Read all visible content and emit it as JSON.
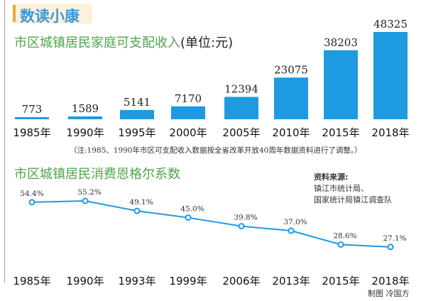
{
  "header": {
    "badge": "数读小康"
  },
  "chart_data": [
    {
      "type": "bar",
      "title": "市区城镇居民家庭可支配收入",
      "unit": "(单位:元)",
      "categories": [
        "1985年",
        "1990年",
        "1995年",
        "2000年",
        "2005年",
        "2010年",
        "2015年",
        "2018年"
      ],
      "values": [
        773,
        1589,
        5141,
        7170,
        12394,
        23075,
        38203,
        48325
      ],
      "note": "（注:1985、1990年市区可支配收入数据按全省改革开放40周年数据资料进行了调整。）",
      "color": "#1e9be0"
    },
    {
      "type": "line",
      "title": "市区城镇居民消费恩格尔系数",
      "categories": [
        "1985年",
        "1990年",
        "1993年",
        "1999年",
        "2006年",
        "2013年",
        "2015年",
        "2018年"
      ],
      "values": [
        54.4,
        55.2,
        49.1,
        45.0,
        39.8,
        37.0,
        28.6,
        27.1
      ],
      "labels": [
        "54.4%",
        "55.2%",
        "49.1%",
        "45.0%",
        "39.8%",
        "37.0%",
        "28.6%",
        "27.1%"
      ],
      "color": "#1e9be0"
    }
  ],
  "source": {
    "title": "资料来源:",
    "lines": [
      "镇江市统计局、",
      "国家统计局镇江调查队"
    ]
  },
  "credit": "制图 冷国方"
}
